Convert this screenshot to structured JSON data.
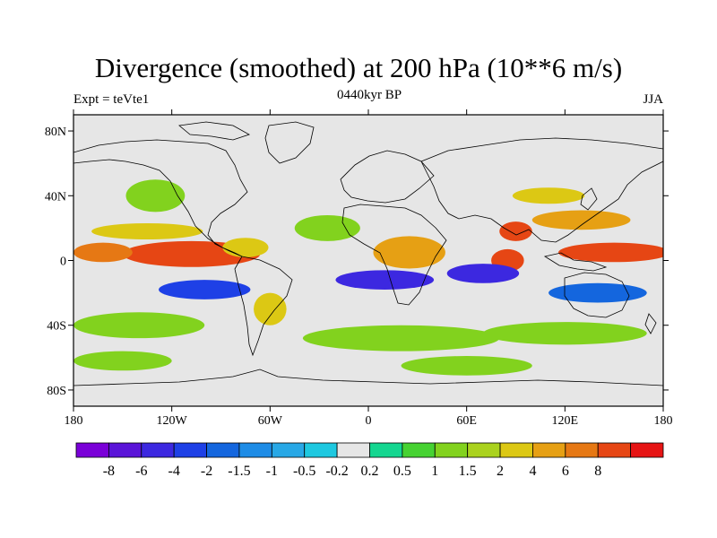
{
  "header": {
    "title": "Divergence (smoothed) at 200 hPa (10**6 m/s)",
    "left_label": "Expt = teVte1",
    "center_label": "0440kyr BP",
    "right_label": "JJA"
  },
  "map": {
    "projection": "cylindrical-equidistant",
    "lon_range": [
      -180,
      180
    ],
    "lat_range": [
      -90,
      90
    ],
    "background_color": "#e6e6e6",
    "coastline_color": "#000000",
    "lon_ticks": [
      {
        "value": -180,
        "label": "180"
      },
      {
        "value": -120,
        "label": "120W"
      },
      {
        "value": -60,
        "label": "60W"
      },
      {
        "value": 0,
        "label": "0"
      },
      {
        "value": 60,
        "label": "60E"
      },
      {
        "value": 120,
        "label": "120E"
      },
      {
        "value": 180,
        "label": "180"
      }
    ],
    "lat_ticks": [
      {
        "value": 80,
        "label": "80N"
      },
      {
        "value": 40,
        "label": "40N"
      },
      {
        "value": 0,
        "label": "0"
      },
      {
        "value": -40,
        "label": "40S"
      },
      {
        "value": -80,
        "label": "80S"
      }
    ]
  },
  "colorbar": {
    "colors": [
      "#7a00d8",
      "#5a14d8",
      "#3c28e0",
      "#1e40e6",
      "#1466de",
      "#1e8ce6",
      "#28a8e6",
      "#1ec8e0",
      "#e6e6e6",
      "#14d690",
      "#46d232",
      "#82d21e",
      "#aad21e",
      "#dcc814",
      "#e6a014",
      "#e67814",
      "#e64614",
      "#e61414"
    ],
    "labels": [
      "-8",
      "-6",
      "-4",
      "-2",
      "-1.5",
      "-1",
      "-0.5",
      "-0.2",
      "0.2",
      "0.5",
      "1",
      "1.5",
      "2",
      "4",
      "6",
      "8"
    ]
  },
  "field_blobs": [
    {
      "lon": -108,
      "lat": 4,
      "rx": 42,
      "ry": 8,
      "value": 8
    },
    {
      "lon": -162,
      "lat": 5,
      "rx": 18,
      "ry": 6,
      "value": 7
    },
    {
      "lon": -75,
      "lat": 8,
      "rx": 14,
      "ry": 6,
      "value": 3
    },
    {
      "lon": -135,
      "lat": 18,
      "rx": 34,
      "ry": 5,
      "value": 2
    },
    {
      "lon": 25,
      "lat": 5,
      "rx": 22,
      "ry": 10,
      "value": 4
    },
    {
      "lon": 85,
      "lat": 0,
      "rx": 10,
      "ry": 7,
      "value": 8
    },
    {
      "lon": 90,
      "lat": 18,
      "rx": 10,
      "ry": 6,
      "value": 8
    },
    {
      "lon": 150,
      "lat": 5,
      "rx": 34,
      "ry": 6,
      "value": 8
    },
    {
      "lon": 130,
      "lat": 25,
      "rx": 30,
      "ry": 6,
      "value": 4
    },
    {
      "lon": 110,
      "lat": 40,
      "rx": 22,
      "ry": 5,
      "value": 3
    },
    {
      "lon": -25,
      "lat": 20,
      "rx": 20,
      "ry": 8,
      "value": 1
    },
    {
      "lon": -100,
      "lat": -18,
      "rx": 28,
      "ry": 6,
      "value": -4
    },
    {
      "lon": 10,
      "lat": -12,
      "rx": 30,
      "ry": 6,
      "value": -6
    },
    {
      "lon": 70,
      "lat": -8,
      "rx": 22,
      "ry": 6,
      "value": -6
    },
    {
      "lon": 140,
      "lat": -20,
      "rx": 30,
      "ry": 6,
      "value": -2
    },
    {
      "lon": -130,
      "lat": 40,
      "rx": 18,
      "ry": 10,
      "value": 1
    },
    {
      "lon": -140,
      "lat": -40,
      "rx": 40,
      "ry": 8,
      "value": 1
    },
    {
      "lon": 20,
      "lat": -48,
      "rx": 60,
      "ry": 8,
      "value": 1
    },
    {
      "lon": 120,
      "lat": -45,
      "rx": 50,
      "ry": 7,
      "value": 1
    },
    {
      "lon": -60,
      "lat": -30,
      "rx": 10,
      "ry": 10,
      "value": 2
    },
    {
      "lon": -150,
      "lat": -62,
      "rx": 30,
      "ry": 6,
      "value": 1
    },
    {
      "lon": 60,
      "lat": -65,
      "rx": 40,
      "ry": 6,
      "value": 1
    }
  ]
}
